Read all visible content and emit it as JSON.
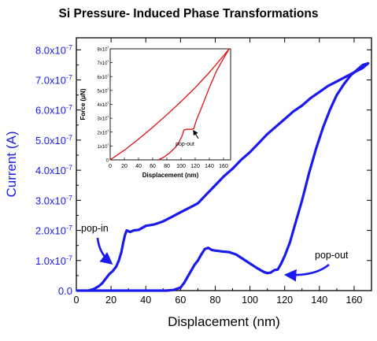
{
  "chart_data": [
    {
      "type": "line",
      "title": "Si Pressure- Induced Phase Transformations",
      "xlabel": "Displacement (nm)",
      "ylabel": "Current (A)",
      "xlim": [
        0,
        170
      ],
      "ylim": [
        0,
        8.4e-07
      ],
      "x_ticks": [
        0,
        20,
        40,
        60,
        80,
        100,
        120,
        140,
        160
      ],
      "y_ticks": [
        0,
        1e-07,
        2e-07,
        3e-07,
        4e-07,
        5e-07,
        6e-07,
        7e-07,
        8e-07
      ],
      "y_tick_labels": [
        "0.0",
        "1.0x10-7",
        "2.0x10-7",
        "3.0x10-7",
        "4.0x10-7",
        "5.0x10-7",
        "6.0x10-7",
        "7.0x10-7",
        "8.0x10-7"
      ],
      "grid": false,
      "colors": {
        "series": "#1a1aee",
        "axis_text": "#1a1aee",
        "axes": "#000000"
      },
      "series": [
        {
          "name": "",
          "x": [
            7,
            10,
            13,
            15,
            17,
            19,
            21,
            23,
            24.5,
            26,
            27,
            28,
            29,
            31,
            33,
            36,
            40,
            45,
            50,
            55,
            60,
            65,
            70,
            75,
            80,
            85,
            90,
            95,
            100,
            105,
            110,
            115,
            120,
            125,
            130,
            135,
            140,
            145,
            150,
            155,
            160,
            165,
            168
          ],
          "y": [
            0,
            5e-09,
            1.5e-08,
            2.5e-08,
            4e-08,
            5.5e-08,
            6.5e-08,
            8e-08,
            1e-07,
            1.3e-07,
            1.6e-07,
            1.85e-07,
            2e-07,
            1.95e-07,
            2e-07,
            2.02e-07,
            2.15e-07,
            2.2e-07,
            2.3e-07,
            2.45e-07,
            2.6e-07,
            2.75e-07,
            2.9e-07,
            3.2e-07,
            3.5e-07,
            3.8e-07,
            4.05e-07,
            4.35e-07,
            4.6e-07,
            4.9e-07,
            5.2e-07,
            5.45e-07,
            5.7e-07,
            5.95e-07,
            6.15e-07,
            6.4e-07,
            6.6e-07,
            6.8e-07,
            6.95e-07,
            7.1e-07,
            7.25e-07,
            7.4e-07,
            7.55e-07
          ]
        },
        {
          "name": "",
          "x": [
            52,
            56,
            60,
            62,
            64,
            66,
            68,
            70,
            72,
            74,
            76,
            78,
            80,
            84,
            88,
            92,
            96,
            100,
            104,
            108,
            110,
            112,
            114,
            116,
            118,
            120,
            123,
            126,
            130,
            134,
            138,
            142,
            146,
            150,
            154,
            158,
            162,
            165,
            168
          ],
          "y": [
            0,
            2e-09,
            1e-08,
            2.5e-08,
            4.5e-08,
            6.5e-08,
            8.5e-08,
            1e-07,
            1.2e-07,
            1.38e-07,
            1.42e-07,
            1.35e-07,
            1.33e-07,
            1.3e-07,
            1.28e-07,
            1.2e-07,
            1.05e-07,
            9e-08,
            7.5e-08,
            6.2e-08,
            5.8e-08,
            6e-08,
            6.8e-08,
            7e-08,
            9e-08,
            1.15e-07,
            1.6e-07,
            2.2e-07,
            3e-07,
            3.9e-07,
            4.7e-07,
            5.4e-07,
            6e-07,
            6.5e-07,
            6.85e-07,
            7.15e-07,
            7.35e-07,
            7.5e-07,
            7.55e-07
          ]
        }
      ],
      "annotations": [
        {
          "text": "pop-in",
          "at_x": 22,
          "at_y": 8e-08
        },
        {
          "text": "pop-out",
          "at_x": 115,
          "at_y": 5.5e-08
        }
      ]
    },
    {
      "type": "line",
      "title": "",
      "xlabel": "Displacement (nm)",
      "ylabel": "Force (μN)",
      "xlim": [
        0,
        170
      ],
      "ylim": [
        0,
        8000
      ],
      "x_ticks": [
        0,
        20,
        40,
        60,
        80,
        100,
        120,
        140,
        160
      ],
      "y_ticks": [
        0,
        1000,
        2000,
        3000,
        4000,
        5000,
        6000,
        7000,
        8000
      ],
      "y_tick_labels": [
        "0",
        "1x10³",
        "2x10³",
        "3x10³",
        "4x10³",
        "5x10³",
        "6x10³",
        "7x10³",
        "8x10³"
      ],
      "grid": false,
      "colors": {
        "series": "#e01010",
        "axes": "#000000"
      },
      "series": [
        {
          "name": "",
          "x": [
            0,
            20,
            40,
            60,
            80,
            100,
            120,
            140,
            160,
            168
          ],
          "y": [
            0,
            700,
            1500,
            2350,
            3250,
            4200,
            5200,
            6300,
            7500,
            8000
          ]
        },
        {
          "name": "",
          "x": [
            68,
            76,
            84,
            92,
            98,
            102,
            104,
            108,
            112,
            116,
            118,
            122,
            130,
            140,
            150,
            160,
            168
          ],
          "y": [
            0,
            200,
            500,
            900,
            1350,
            1800,
            2150,
            2200,
            2200,
            2200,
            2250,
            2900,
            3900,
            5200,
            6400,
            7300,
            8000
          ]
        }
      ],
      "annotations": [
        {
          "text": "pop-out",
          "at_x": 120,
          "at_y": 2700
        }
      ]
    }
  ]
}
